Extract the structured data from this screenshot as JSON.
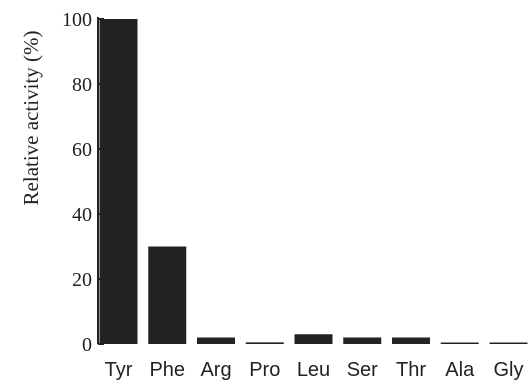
{
  "chart_data": {
    "type": "bar",
    "categories": [
      "Tyr",
      "Phe",
      "Arg",
      "Pro",
      "Leu",
      "Ser",
      "Thr",
      "Ala",
      "Gly"
    ],
    "values": [
      100,
      30,
      2,
      0.5,
      3,
      2,
      2,
      0.3,
      0.3
    ],
    "title": "",
    "xlabel": "",
    "ylabel": "Relative activity (%)",
    "ylim": [
      0,
      100
    ],
    "yticks": [
      0,
      20,
      40,
      60,
      80,
      100
    ],
    "grid": false,
    "bar_color": "#222222"
  }
}
